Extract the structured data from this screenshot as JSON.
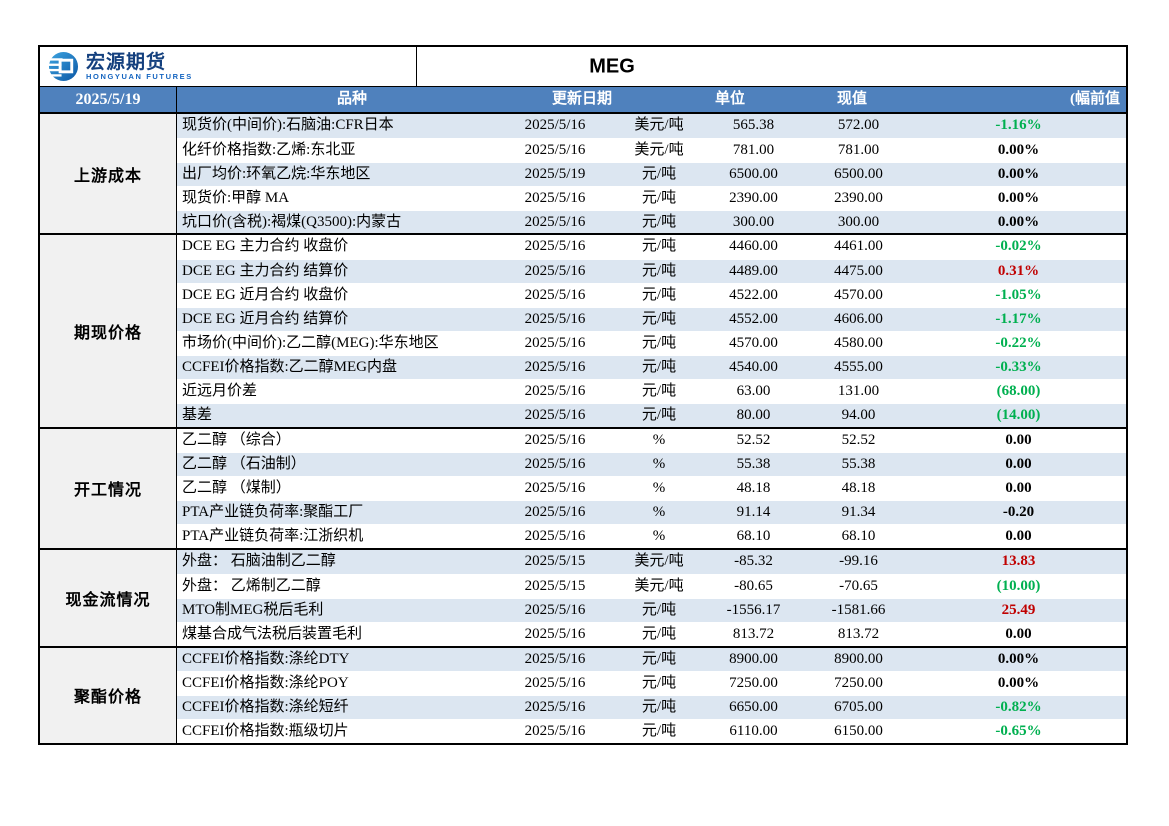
{
  "page": {
    "title": "MEG",
    "report_date": "2025/5/19"
  },
  "logo": {
    "name_cn": "宏源期货",
    "name_en": "HONGYUAN FUTURES"
  },
  "columns": {
    "category": "品种",
    "update_date": "更新日期",
    "unit": "单位",
    "current": "现值",
    "change": "(幅前值"
  },
  "colors": {
    "header_bg": "#4f81bd",
    "row_band_blue": "#dce6f1",
    "section_label_bg": "#f1f1f1",
    "change_up_red": "#c00000",
    "change_down_green": "#00b050"
  },
  "sections": [
    {
      "label": "上游成本",
      "rows": [
        {
          "name": "现货价(中间价):石脑油:CFR日本",
          "date": "2025/5/16",
          "unit": "美元/吨",
          "current": "565.38",
          "previous": "572.00",
          "change": "-1.16%",
          "change_color": "green"
        },
        {
          "name": "化纤价格指数:乙烯:东北亚",
          "date": "2025/5/16",
          "unit": "美元/吨",
          "current": "781.00",
          "previous": "781.00",
          "change": "0.00%",
          "change_color": "black"
        },
        {
          "name": "出厂均价:环氧乙烷:华东地区",
          "date": "2025/5/19",
          "unit": "元/吨",
          "current": "6500.00",
          "previous": "6500.00",
          "change": "0.00%",
          "change_color": "black"
        },
        {
          "name": "现货价:甲醇 MA",
          "date": "2025/5/16",
          "unit": "元/吨",
          "current": "2390.00",
          "previous": "2390.00",
          "change": "0.00%",
          "change_color": "black"
        },
        {
          "name": "坑口价(含税):褐煤(Q3500):内蒙古",
          "date": "2025/5/16",
          "unit": "元/吨",
          "current": "300.00",
          "previous": "300.00",
          "change": "0.00%",
          "change_color": "black"
        }
      ]
    },
    {
      "label": "期现价格",
      "rows": [
        {
          "name": "DCE EG 主力合约 收盘价",
          "date": "2025/5/16",
          "unit": "元/吨",
          "current": "4460.00",
          "previous": "4461.00",
          "change": "-0.02%",
          "change_color": "green"
        },
        {
          "name": "DCE EG 主力合约 结算价",
          "date": "2025/5/16",
          "unit": "元/吨",
          "current": "4489.00",
          "previous": "4475.00",
          "change": "0.31%",
          "change_color": "red"
        },
        {
          "name": "DCE EG 近月合约 收盘价",
          "date": "2025/5/16",
          "unit": "元/吨",
          "current": "4522.00",
          "previous": "4570.00",
          "change": "-1.05%",
          "change_color": "green"
        },
        {
          "name": "DCE EG 近月合约 结算价",
          "date": "2025/5/16",
          "unit": "元/吨",
          "current": "4552.00",
          "previous": "4606.00",
          "change": "-1.17%",
          "change_color": "green"
        },
        {
          "name": "市场价(中间价):乙二醇(MEG):华东地区",
          "date": "2025/5/16",
          "unit": "元/吨",
          "current": "4570.00",
          "previous": "4580.00",
          "change": "-0.22%",
          "change_color": "green"
        },
        {
          "name": "CCFEI价格指数:乙二醇MEG内盘",
          "date": "2025/5/16",
          "unit": "元/吨",
          "current": "4540.00",
          "previous": "4555.00",
          "change": "-0.33%",
          "change_color": "green"
        },
        {
          "name": "近远月价差",
          "date": "2025/5/16",
          "unit": "元/吨",
          "current": "63.00",
          "previous": "131.00",
          "change": "(68.00)",
          "change_color": "green"
        },
        {
          "name": "基差",
          "date": "2025/5/16",
          "unit": "元/吨",
          "current": "80.00",
          "previous": "94.00",
          "change": "(14.00)",
          "change_color": "green"
        }
      ]
    },
    {
      "label": "开工情况",
      "rows": [
        {
          "name": "乙二醇 （综合）",
          "date": "2025/5/16",
          "unit": "%",
          "current": "52.52",
          "previous": "52.52",
          "change": "0.00",
          "change_color": "black"
        },
        {
          "name": "乙二醇 （石油制）",
          "date": "2025/5/16",
          "unit": "%",
          "current": "55.38",
          "previous": "55.38",
          "change": "0.00",
          "change_color": "black"
        },
        {
          "name": "乙二醇 （煤制）",
          "date": "2025/5/16",
          "unit": "%",
          "current": "48.18",
          "previous": "48.18",
          "change": "0.00",
          "change_color": "black"
        },
        {
          "name": "PTA产业链负荷率:聚酯工厂",
          "date": "2025/5/16",
          "unit": "%",
          "current": "91.14",
          "previous": "91.34",
          "change": "-0.20",
          "change_color": "black"
        },
        {
          "name": "PTA产业链负荷率:江浙织机",
          "date": "2025/5/16",
          "unit": "%",
          "current": "68.10",
          "previous": "68.10",
          "change": "0.00",
          "change_color": "black"
        }
      ]
    },
    {
      "label": "现金流情况",
      "rows": [
        {
          "name": "外盘： 石脑油制乙二醇",
          "date": "2025/5/15",
          "unit": "美元/吨",
          "current": "-85.32",
          "previous": "-99.16",
          "change": "13.83",
          "change_color": "red"
        },
        {
          "name": "外盘： 乙烯制乙二醇",
          "date": "2025/5/15",
          "unit": "美元/吨",
          "current": "-80.65",
          "previous": "-70.65",
          "change": "(10.00)",
          "change_color": "green"
        },
        {
          "name": "MTO制MEG税后毛利",
          "date": "2025/5/16",
          "unit": "元/吨",
          "current": "-1556.17",
          "previous": "-1581.66",
          "change": "25.49",
          "change_color": "red"
        },
        {
          "name": "煤基合成气法税后装置毛利",
          "date": "2025/5/16",
          "unit": "元/吨",
          "current": "813.72",
          "previous": "813.72",
          "change": "0.00",
          "change_color": "black"
        }
      ]
    },
    {
      "label": "聚酯价格",
      "rows": [
        {
          "name": "CCFEI价格指数:涤纶DTY",
          "date": "2025/5/16",
          "unit": "元/吨",
          "current": "8900.00",
          "previous": "8900.00",
          "change": "0.00%",
          "change_color": "black"
        },
        {
          "name": "CCFEI价格指数:涤纶POY",
          "date": "2025/5/16",
          "unit": "元/吨",
          "current": "7250.00",
          "previous": "7250.00",
          "change": "0.00%",
          "change_color": "black"
        },
        {
          "name": "CCFEI价格指数:涤纶短纤",
          "date": "2025/5/16",
          "unit": "元/吨",
          "current": "6650.00",
          "previous": "6705.00",
          "change": "-0.82%",
          "change_color": "green"
        },
        {
          "name": "CCFEI价格指数:瓶级切片",
          "date": "2025/5/16",
          "unit": "元/吨",
          "current": "6110.00",
          "previous": "6150.00",
          "change": "-0.65%",
          "change_color": "green"
        }
      ]
    }
  ]
}
